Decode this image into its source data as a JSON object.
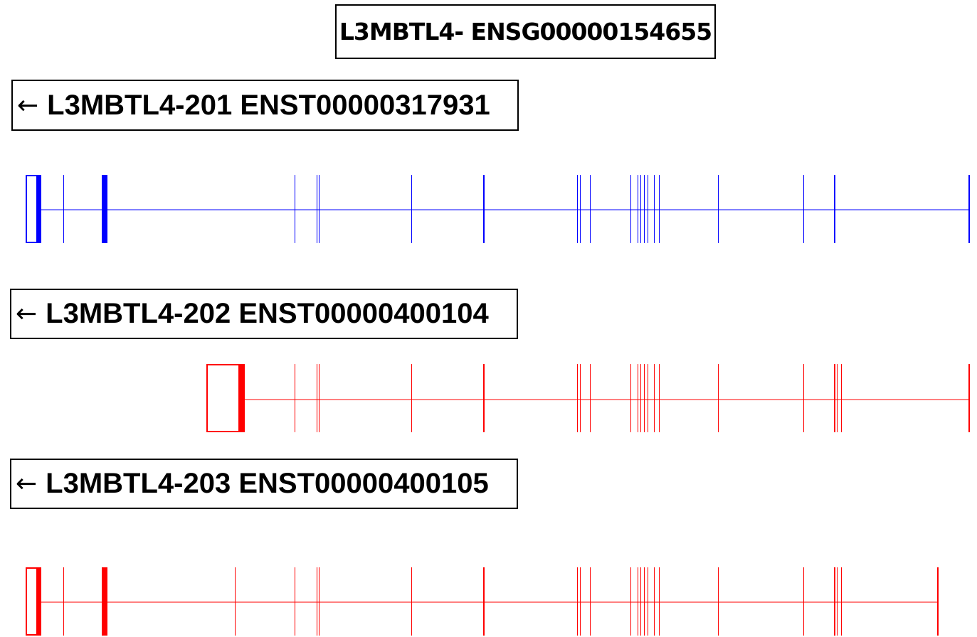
{
  "gene": {
    "label": "L3MBTL4- ENSG00000154655"
  },
  "transcripts": [
    {
      "id": "201",
      "arrow": "←",
      "label": "L3MBTL4-201 ENST00000317931",
      "color": "#0000ff"
    },
    {
      "id": "202",
      "arrow": "←",
      "label": "L3MBTL4-202 ENST00000400104",
      "color": "#ff0000"
    },
    {
      "id": "203",
      "arrow": "←",
      "label": "L3MBTL4-203 ENST00000400105",
      "color": "#ff0000"
    }
  ]
}
